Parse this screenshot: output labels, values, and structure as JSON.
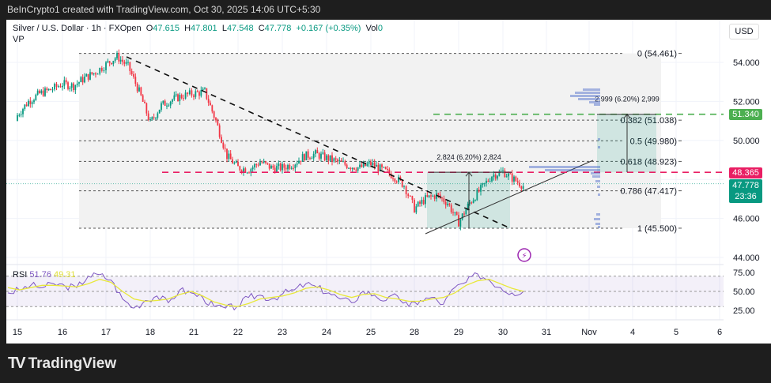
{
  "header": {
    "credit": "BeInCrypto1 created with TradingView.com, Oct 30, 2025 14:06 UTC+5:30"
  },
  "legend": {
    "symbol": "Silver / U.S. Dollar · 1h · FXOpen",
    "open_label": "O",
    "open": "47.615",
    "high_label": "H",
    "high": "47.801",
    "low_label": "L",
    "low": "47.548",
    "close_label": "C",
    "close": "47.778",
    "change": "+0.167 (+0.35%)",
    "vol_label": "Vol",
    "vol": "0",
    "vp": "VP"
  },
  "currency": "USD",
  "price_axis": [
    "54.000",
    "52.000",
    "50.000",
    "46.000",
    "44.000"
  ],
  "badges": {
    "target": "51.340",
    "resistance": "48.365",
    "last": "47.778",
    "countdown": "23:36"
  },
  "fib_levels": [
    {
      "label": "0 (54.461)",
      "price": 54.461
    },
    {
      "label": "0.382 (51.038)",
      "price": 51.038
    },
    {
      "label": "0.5 (49.980)",
      "price": 49.98
    },
    {
      "label": "0.618 (48.923)",
      "price": 48.923
    },
    {
      "label": "0.786 (47.417)",
      "price": 47.417
    },
    {
      "label": "1 (45.500)",
      "price": 45.5
    }
  ],
  "measures": [
    {
      "label": "2.824 (6.20%) 2,824"
    },
    {
      "label": "2.999 (6.20%) 2,999"
    }
  ],
  "rsi": {
    "label": "RSI",
    "value": "51.76",
    "ma": "49.31",
    "axis": [
      "75.00",
      "50.00",
      "25.00"
    ]
  },
  "x_axis": [
    "15",
    "16",
    "17",
    "18",
    "21",
    "22",
    "23",
    "24",
    "25",
    "28",
    "29",
    "30",
    "31",
    "Nov",
    "4",
    "5",
    "6"
  ],
  "brand": "TradingView",
  "colors": {
    "up": "#089981",
    "down": "#f23645",
    "target": "#4caf50",
    "resistance": "#e91e63",
    "rsi": "#7e57c2",
    "rsi_ma": "#e8e83a"
  },
  "chart_data": {
    "type": "candlestick",
    "title": "Silver / U.S. Dollar · 1h · FXOpen",
    "ylim": [
      43.5,
      55
    ],
    "approx_closes_6h": {
      "15": [
        51.3,
        52.0,
        52.4,
        52.6
      ],
      "16": [
        52.9,
        52.8,
        53.2,
        53.5
      ],
      "17": [
        53.9,
        54.3,
        53.8,
        52.5
      ],
      "18": [
        50.9,
        51.8,
        52.1,
        52.3
      ],
      "21": [
        52.4,
        52.5,
        51.0,
        49.2
      ],
      "22": [
        48.6,
        48.5,
        48.9,
        48.6
      ],
      "23": [
        48.6,
        48.8,
        49.2,
        49.3
      ],
      "24": [
        49.1,
        48.9,
        48.7,
        48.6
      ],
      "25": [
        48.8,
        48.5,
        48.2,
        47.7
      ],
      "28": [
        46.5,
        47.0,
        47.2,
        46.8
      ],
      "29": [
        45.8,
        46.8,
        47.5,
        48.2
      ],
      "30": [
        48.4,
        48.0,
        47.6,
        47.778
      ]
    },
    "rsi_approx_6h": [
      48,
      52,
      58,
      55,
      60,
      57,
      55,
      70,
      72,
      65,
      40,
      28,
      38,
      44,
      35,
      52,
      48,
      42,
      30,
      28,
      30,
      42,
      45,
      40,
      47,
      52,
      60,
      55,
      48,
      40,
      35,
      50,
      45,
      38,
      44,
      30,
      38,
      42,
      33,
      55,
      62,
      73,
      65,
      55,
      48,
      50
    ],
    "rsi_ma_approx_6h": [
      55,
      52,
      55,
      58,
      58,
      57,
      56,
      60,
      66,
      62,
      50,
      40,
      37,
      38,
      40,
      46,
      50,
      44,
      36,
      32,
      30,
      34,
      40,
      42,
      44,
      48,
      54,
      56,
      52,
      46,
      42,
      46,
      47,
      42,
      40,
      37,
      37,
      40,
      42,
      48,
      58,
      64,
      66,
      60,
      54,
      50
    ]
  }
}
